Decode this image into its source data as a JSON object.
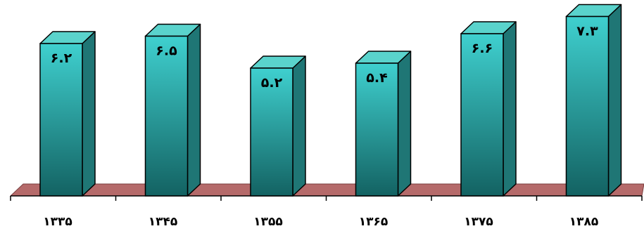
{
  "chart_data": {
    "type": "bar",
    "categories": [
      "۱۳۳۵",
      "۱۳۴۵",
      "۱۳۵۵",
      "۱۳۶۵",
      "۱۳۷۵",
      "۱۳۸۵"
    ],
    "values": [
      6.2,
      6.5,
      5.2,
      5.4,
      6.6,
      7.3
    ],
    "data_labels": [
      "۶.۲",
      "۶.۵",
      "۵.۲",
      "۵.۴",
      "۶.۶",
      "۷.۳"
    ],
    "title": "",
    "xlabel": "",
    "ylabel": "",
    "ylim": [
      0,
      8
    ],
    "grid": false,
    "legend": "none",
    "style": "3d-column"
  },
  "colors": {
    "bar_front_top": "#3fd0cf",
    "bar_front_bottom": "#136262",
    "bar_side": "#1f7675",
    "bar_top": "#5ad3cc",
    "floor": "#b56a6a",
    "floor_edge": "#7a3f3f",
    "outline": "#000000"
  }
}
